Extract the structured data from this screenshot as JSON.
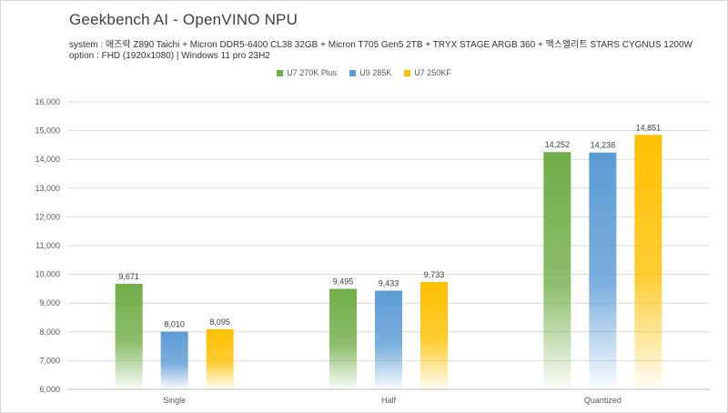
{
  "header": {
    "title": "Geekbench AI - OpenVINO NPU",
    "system_line": "system : 애즈락 Z890 Taichi + Micron DDR5-6400 CL38 32GB + Micron T705 Gen5 2TB + TRYX STAGE ARGB 360 + 맥스엘리트 STARS CYGNUS 1200W",
    "option_line": "option : FHD (1920x1080) | Windows 11 pro 23H2"
  },
  "colors": {
    "green": "#70ad47",
    "blue": "#5b9bd5",
    "yellow": "#ffc000",
    "grid": "#d9d9d9"
  },
  "chart_data": {
    "type": "bar",
    "title": "Geekbench AI - OpenVINO NPU",
    "categories": [
      "Single",
      "Half",
      "Quantized"
    ],
    "series": [
      {
        "name": "U7 270K Plus",
        "color": "#70ad47",
        "values": [
          9671,
          9495,
          14252
        ],
        "labels": [
          "9,671",
          "9,495",
          "14,252"
        ]
      },
      {
        "name": "U9 285K",
        "color": "#5b9bd5",
        "values": [
          8010,
          9433,
          14238
        ],
        "labels": [
          "8,010",
          "9,433",
          "14,238"
        ]
      },
      {
        "name": "U7 250KF",
        "color": "#ffc000",
        "values": [
          8095,
          9733,
          14851
        ],
        "labels": [
          "8,095",
          "9,733",
          "14,851"
        ]
      }
    ],
    "ylim": [
      6000,
      16000
    ],
    "yticks": [
      6000,
      7000,
      8000,
      9000,
      10000,
      11000,
      12000,
      13000,
      14000,
      15000,
      16000
    ],
    "ytick_labels": [
      "6,000",
      "7,000",
      "8,000",
      "9,000",
      "10,000",
      "11,000",
      "12,000",
      "13,000",
      "14,000",
      "15,000",
      "16,000"
    ],
    "grid": true,
    "legend": "top-center"
  }
}
